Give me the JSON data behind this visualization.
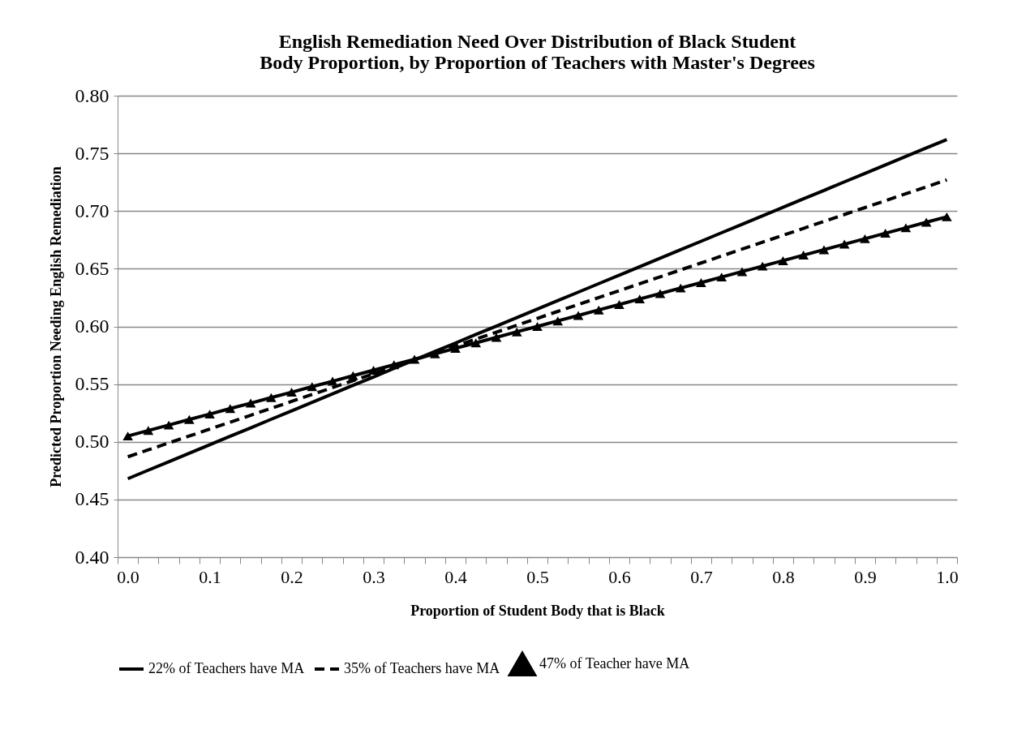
{
  "chart_data": {
    "type": "line",
    "title": "English Remediation Need Over Distribution of Black Student Body Proportion, by Proportion of Teachers with Master's Degrees",
    "xlabel": "Proportion of Student Body that is Black",
    "ylabel": "Predicted Proportion Needing English Remediation",
    "categories": [
      "0.0",
      null,
      null,
      null,
      "0.1",
      null,
      null,
      null,
      "0.2",
      null,
      null,
      null,
      "0.3",
      null,
      null,
      null,
      "0.4",
      null,
      null,
      null,
      "0.5",
      null,
      null,
      null,
      "0.6",
      null,
      null,
      null,
      "0.7",
      null,
      null,
      null,
      "0.8",
      null,
      null,
      null,
      "0.9",
      null,
      null,
      null,
      "1.0"
    ],
    "ylim": [
      0.4,
      0.8
    ],
    "yticks": [
      {
        "value": 0.4,
        "label": "0.40"
      },
      0.45,
      {
        "value": 0.5,
        "label": "0.50"
      },
      0.55,
      {
        "value": 0.6,
        "label": "0.60"
      },
      0.65,
      {
        "value": 0.7,
        "label": "0.70"
      },
      0.75,
      {
        "value": 0.8,
        "label": "0.80"
      }
    ],
    "grid": "y",
    "legend": "bottom",
    "series": [
      {
        "name": "22% of Teachers have MA",
        "color": "#000000",
        "line_style": "solid",
        "marker": "none",
        "values": [
          0.468,
          0.4754,
          0.4827,
          0.4901,
          0.4974,
          0.5048,
          0.5121,
          0.5195,
          0.5268,
          0.5342,
          0.5415,
          0.5489,
          0.5562,
          0.5636,
          0.5709,
          0.5783,
          0.5856,
          0.593,
          0.6003,
          0.6077,
          0.615,
          0.6224,
          0.6297,
          0.6371,
          0.6444,
          0.6518,
          0.6591,
          0.6665,
          0.6738,
          0.6812,
          0.6885,
          0.6959,
          0.7032,
          0.7106,
          0.7179,
          0.7253,
          0.7326,
          0.74,
          0.7473,
          0.7547,
          0.762
        ]
      },
      {
        "name": "35% of Teachers have MA",
        "color": "#000000",
        "line_style": "dashed",
        "marker": "none",
        "values": [
          0.487,
          0.493,
          0.499,
          0.505,
          0.511,
          0.517,
          0.523,
          0.529,
          0.535,
          0.541,
          0.547,
          0.553,
          0.559,
          0.565,
          0.571,
          0.577,
          0.583,
          0.589,
          0.595,
          0.601,
          0.607,
          0.613,
          0.619,
          0.625,
          0.631,
          0.637,
          0.643,
          0.649,
          0.655,
          0.661,
          0.667,
          0.673,
          0.679,
          0.685,
          0.691,
          0.697,
          0.703,
          0.709,
          0.715,
          0.721,
          0.727
        ]
      },
      {
        "name": "47% of Teacher have MA",
        "color": "#000000",
        "line_style": "solid",
        "marker": "triangle",
        "values": [
          0.505,
          0.5098,
          0.5145,
          0.5193,
          0.524,
          0.5288,
          0.5335,
          0.5383,
          0.543,
          0.5478,
          0.5525,
          0.5573,
          0.562,
          0.5668,
          0.5715,
          0.5763,
          0.581,
          0.5858,
          0.5905,
          0.5953,
          0.6,
          0.6048,
          0.6095,
          0.6143,
          0.619,
          0.6238,
          0.6285,
          0.6333,
          0.638,
          0.6428,
          0.6475,
          0.6523,
          0.657,
          0.6618,
          0.6665,
          0.6713,
          0.676,
          0.6808,
          0.6855,
          0.6903,
          0.695
        ]
      }
    ]
  }
}
